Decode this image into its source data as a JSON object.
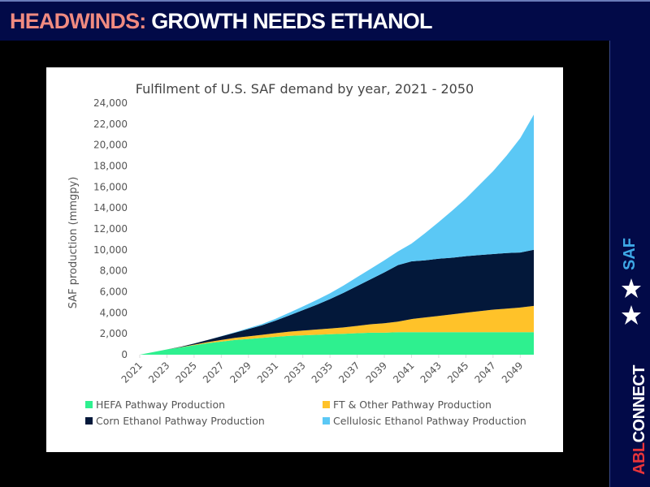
{
  "header": {
    "title_accent": "HEADWINDS:",
    "title_rest": " GROWTH NEEDS ETHANOL"
  },
  "sidebar": {
    "brand_abl": "ABL",
    "brand_connect": "CONNECT",
    "stars": "★ ★",
    "saf_label": "SAF",
    "brand_colors": {
      "navy": "#020a48",
      "red": "#e8343a",
      "blue": "#3ea8e6"
    }
  },
  "chart_data": {
    "type": "area",
    "stacked": true,
    "title": "Fulfilment of U.S. SAF demand by year, 2021 - 2050",
    "xlabel": "",
    "ylabel": "SAF production (mmgpy)",
    "ylim": [
      0,
      24000
    ],
    "yticks": [
      0,
      2000,
      4000,
      6000,
      8000,
      10000,
      12000,
      14000,
      16000,
      18000,
      20000,
      22000,
      24000
    ],
    "ytick_labels": [
      "0",
      "2,000",
      "4,000",
      "6,000",
      "8,000",
      "10,000",
      "12,000",
      "14,000",
      "16,000",
      "18,000",
      "20,000",
      "22,000",
      "24,000"
    ],
    "x": [
      2021,
      2022,
      2023,
      2024,
      2025,
      2026,
      2027,
      2028,
      2029,
      2030,
      2031,
      2032,
      2033,
      2034,
      2035,
      2036,
      2037,
      2038,
      2039,
      2040,
      2041,
      2042,
      2043,
      2044,
      2045,
      2046,
      2047,
      2048,
      2049,
      2050
    ],
    "xtick_labels": [
      "2021",
      "2023",
      "2025",
      "2027",
      "2029",
      "2031",
      "2033",
      "2035",
      "2037",
      "2039",
      "2041",
      "2043",
      "2045",
      "2047",
      "2049"
    ],
    "grid": false,
    "legend_position": "bottom",
    "series": [
      {
        "name": "HEFA Pathway Production",
        "color": "#2ef08f",
        "values": [
          0,
          250,
          500,
          700,
          900,
          1100,
          1250,
          1400,
          1500,
          1600,
          1700,
          1800,
          1850,
          1900,
          1950,
          2000,
          2050,
          2100,
          2100,
          2150,
          2150,
          2150,
          2150,
          2150,
          2150,
          2150,
          2150,
          2150,
          2150,
          2150
        ]
      },
      {
        "name": "FT & Other Pathway Production",
        "color": "#ffc229",
        "values": [
          0,
          0,
          0,
          20,
          60,
          100,
          150,
          200,
          250,
          300,
          350,
          400,
          450,
          500,
          550,
          600,
          700,
          800,
          900,
          1000,
          1250,
          1400,
          1550,
          1700,
          1850,
          2000,
          2150,
          2250,
          2350,
          2500
        ]
      },
      {
        "name": "Corn Ethanol Pathway Production",
        "color": "#03183a",
        "values": [
          0,
          0,
          0,
          30,
          100,
          200,
          350,
          500,
          700,
          900,
          1200,
          1550,
          1950,
          2350,
          2800,
          3300,
          3800,
          4300,
          4850,
          5400,
          5500,
          5450,
          5450,
          5400,
          5400,
          5350,
          5300,
          5300,
          5250,
          5350
        ]
      },
      {
        "name": "Cellulosic Ethanol Pathway Production",
        "color": "#5bc8f5",
        "values": [
          0,
          0,
          0,
          0,
          0,
          0,
          20,
          40,
          80,
          120,
          180,
          250,
          350,
          450,
          550,
          700,
          850,
          1000,
          1150,
          1300,
          1700,
          2600,
          3500,
          4500,
          5500,
          6700,
          7900,
          9300,
          10900,
          12900
        ]
      }
    ]
  }
}
